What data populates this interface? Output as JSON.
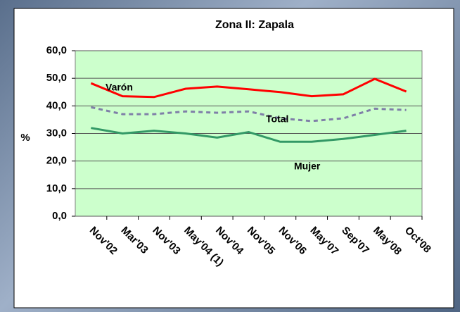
{
  "chart_data": {
    "type": "line",
    "title": "Zona II: Zapala",
    "ylabel": "%",
    "categories": [
      "Nov'02",
      "Mar'03",
      "Nov'03",
      "May'04 (1)",
      "Nov'04",
      "Nov'05",
      "Nov'06",
      "May'07",
      "Sep'07",
      "May'08",
      "Oct'08"
    ],
    "series": [
      {
        "name": "Varón",
        "color": "#ff0000",
        "dash": false,
        "values": [
          48.2,
          43.5,
          43.2,
          46.2,
          47.0,
          46.0,
          45.0,
          43.5,
          44.2,
          49.8,
          45.2
        ]
      },
      {
        "name": "Total",
        "color": "#7f7fa8",
        "dash": true,
        "values": [
          39.5,
          37.0,
          37.0,
          38.0,
          37.5,
          38.0,
          35.5,
          34.5,
          35.5,
          39.0,
          38.5
        ]
      },
      {
        "name": "Mujer",
        "color": "#339966",
        "dash": false,
        "values": [
          32.0,
          30.0,
          31.0,
          30.0,
          28.5,
          30.5,
          27.0,
          27.0,
          28.0,
          29.5,
          31.0
        ]
      }
    ],
    "ylim": [
      0,
      60
    ],
    "yticks": [
      {
        "value": 0,
        "label": "0,0"
      },
      {
        "value": 10,
        "label": "10,0"
      },
      {
        "value": 20,
        "label": "20,0"
      },
      {
        "value": 30,
        "label": "30,0"
      },
      {
        "value": 40,
        "label": "40,0"
      },
      {
        "value": 50,
        "label": "50,0"
      },
      {
        "value": 60,
        "label": "60,0"
      }
    ],
    "grid": true
  }
}
